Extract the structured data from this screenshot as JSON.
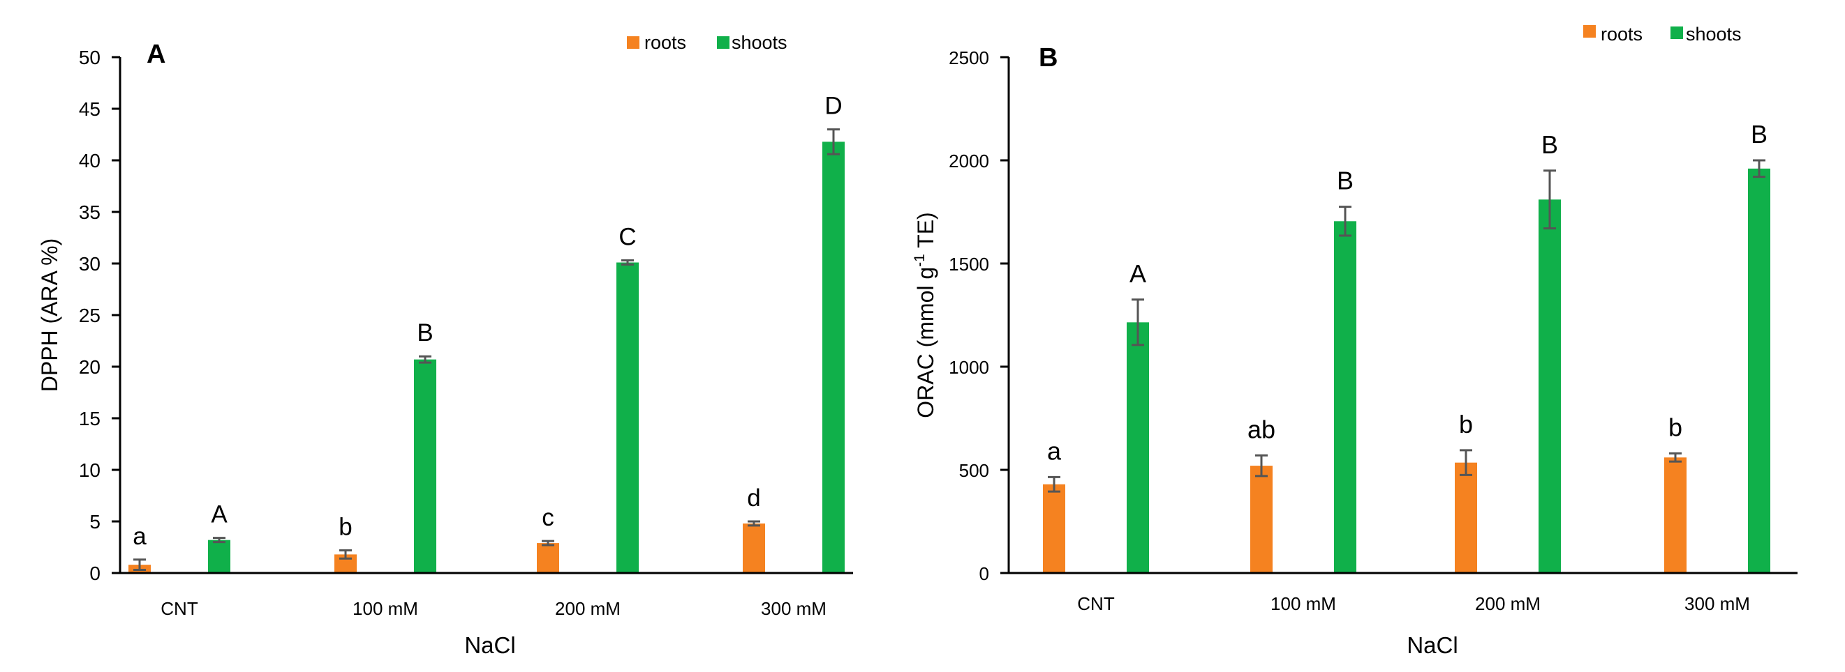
{
  "chart_data": [
    {
      "type": "bar",
      "panel_label": "A",
      "ylabel": "DPPH (ARA %)",
      "xlabel": "NaCl",
      "categories": [
        "CNT",
        "100 mM",
        "200 mM",
        "300 mM"
      ],
      "ylim": [
        0,
        50
      ],
      "yticks": [
        0,
        5,
        10,
        15,
        20,
        25,
        30,
        35,
        40,
        45,
        50
      ],
      "legend_position": "top-right",
      "series": [
        {
          "name": "roots",
          "color": "#f58220",
          "values": [
            0.8,
            1.8,
            2.9,
            4.8
          ],
          "errors": [
            0.5,
            0.4,
            0.2,
            0.2
          ],
          "letters": [
            "a",
            "b",
            "c",
            "d"
          ]
        },
        {
          "name": "shoots",
          "color": "#10b04a",
          "values": [
            3.2,
            20.7,
            30.1,
            41.8
          ],
          "errors": [
            0.2,
            0.3,
            0.2,
            1.2
          ],
          "letters": [
            "A",
            "B",
            "C",
            "D"
          ]
        }
      ]
    },
    {
      "type": "bar",
      "panel_label": "B",
      "ylabel": "ORAC (mmol g",
      "ylabel_superscript": "-1",
      "ylabel_suffix": " TE)",
      "xlabel": "NaCl",
      "categories": [
        "CNT",
        "100 mM",
        "200 mM",
        "300 mM"
      ],
      "ylim": [
        0,
        2500
      ],
      "yticks": [
        0,
        500,
        1000,
        1500,
        2000,
        2500
      ],
      "legend_position": "top-right",
      "series": [
        {
          "name": "roots",
          "color": "#f58220",
          "values": [
            430,
            520,
            535,
            560
          ],
          "errors": [
            35,
            50,
            60,
            20
          ],
          "letters": [
            "a",
            "ab",
            "b",
            "b"
          ]
        },
        {
          "name": "shoots",
          "color": "#10b04a",
          "values": [
            1215,
            1705,
            1810,
            1960
          ],
          "errors": [
            110,
            70,
            140,
            40
          ],
          "letters": [
            "A",
            "B",
            "B",
            "B"
          ]
        }
      ]
    }
  ]
}
